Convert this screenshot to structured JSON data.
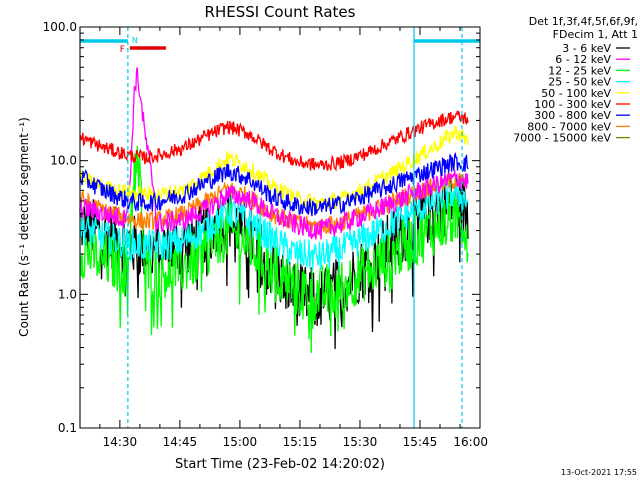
{
  "chart_data": {
    "type": "line",
    "title": "RHESSI Count Rates",
    "xlabel": "Start Time (23-Feb-02 14:20:02)",
    "ylabel": "Count Rate (s⁻¹ detector segment⁻¹)",
    "yscale": "log",
    "ylim": [
      0.1,
      100.0
    ],
    "xlim": [
      "14:20:02",
      "16:00:00"
    ],
    "x_tick_labels": [
      "14:30",
      "14:45",
      "15:00",
      "15:15",
      "15:30",
      "15:45",
      "16:00"
    ],
    "x_ticks_minutes": [
      870,
      885,
      900,
      915,
      930,
      945,
      960
    ],
    "y_tick_labels": [
      "0.1",
      "1.0",
      "10.0",
      "100.0"
    ],
    "y_ticks": [
      0.1,
      1.0,
      10.0,
      100.0
    ],
    "legend_header": [
      "Det 1f,3f,4f,5f,6f,9f,",
      "FDecim 1, Att 1"
    ],
    "legend_placement": "right",
    "timestamp": "13-Oct-2021 17:55",
    "x_minutes": [
      860,
      866,
      872,
      876,
      880,
      886,
      892,
      897,
      902,
      908,
      914,
      920,
      926,
      932,
      938,
      944,
      950,
      954,
      957
    ],
    "series": [
      {
        "name": "3 - 6 keV",
        "color": "#000000",
        "values": [
          3.4,
          2.8,
          2.4,
          2.2,
          2.2,
          2.3,
          3.0,
          3.8,
          2.8,
          1.6,
          1.0,
          0.9,
          1.2,
          1.7,
          2.5,
          3.5,
          4.6,
          5.2,
          4.0
        ]
      },
      {
        "name": "6 - 12 keV",
        "color": "#ff00ff",
        "values": [
          4.5,
          4.0,
          3.6,
          3.4,
          3.4,
          3.6,
          4.4,
          5.6,
          5.2,
          4.0,
          3.3,
          3.0,
          3.4,
          4.0,
          4.8,
          5.8,
          6.8,
          7.4,
          7.0
        ]
      },
      {
        "name": "12 - 25 keV",
        "color": "#00ff00",
        "values": [
          2.2,
          1.8,
          1.6,
          1.5,
          1.5,
          1.6,
          2.2,
          3.0,
          2.4,
          1.6,
          1.1,
          1.0,
          1.2,
          1.5,
          2.0,
          2.6,
          3.4,
          3.8,
          3.2
        ]
      },
      {
        "name": "25 - 50 keV",
        "color": "#00ffff",
        "values": [
          3.2,
          2.7,
          2.4,
          2.3,
          2.3,
          2.5,
          3.2,
          4.2,
          3.6,
          2.6,
          2.0,
          1.9,
          2.2,
          2.7,
          3.4,
          4.3,
          5.2,
          5.8,
          5.0
        ]
      },
      {
        "name": "50 - 100 keV",
        "color": "#ffff00",
        "values": [
          7.5,
          6.3,
          5.8,
          5.6,
          5.6,
          6.0,
          8.0,
          10.5,
          9.0,
          6.5,
          5.2,
          4.8,
          5.2,
          6.4,
          8.0,
          10.5,
          13.5,
          16.5,
          14.0
        ]
      },
      {
        "name": "100 - 300 keV",
        "color": "#ff0000",
        "values": [
          15.0,
          12.5,
          11.0,
          10.5,
          11.0,
          12.5,
          15.5,
          18.0,
          16.0,
          12.0,
          9.8,
          9.2,
          9.8,
          11.5,
          14.0,
          17.0,
          20.0,
          21.5,
          20.5
        ]
      },
      {
        "name": "300 - 800 keV",
        "color": "#0000ff",
        "values": [
          7.6,
          6.0,
          5.0,
          4.8,
          5.0,
          5.6,
          7.0,
          8.4,
          7.4,
          5.4,
          4.6,
          4.4,
          4.8,
          5.6,
          6.6,
          7.8,
          9.0,
          9.8,
          9.4
        ]
      },
      {
        "name": "800 - 7000 keV",
        "color": "#ff8000",
        "values": [
          5.2,
          4.2,
          3.7,
          3.5,
          3.6,
          4.0,
          5.0,
          6.2,
          5.4,
          4.0,
          3.4,
          3.2,
          3.5,
          4.1,
          4.9,
          5.8,
          6.6,
          7.2,
          6.8
        ]
      },
      {
        "name": "7000 - 15000 keV",
        "color": "#808000",
        "values": []
      }
    ],
    "flare_series_6_12_keV": {
      "x_minutes": [
        871,
        872.5,
        873.5,
        874.2,
        875,
        876,
        877.5,
        879
      ],
      "values": [
        3.6,
        6.0,
        30.0,
        45.0,
        33.0,
        18.0,
        9.0,
        5.0
      ]
    },
    "flare_series_12_25_keV": {
      "x_minutes": [
        872,
        873.5,
        874.5,
        876
      ],
      "values": [
        1.6,
        8.0,
        12.0,
        2.5
      ]
    },
    "attenuator_state_bar": {
      "color": "#00c8e8",
      "intervals": [
        [
          "14:20:02",
          "14:32:00"
        ],
        [
          "15:43:30",
          "16:00:00"
        ]
      ]
    },
    "vertical_markers": {
      "solid": [
        "14:20:02",
        "15:43:30"
      ],
      "dashed": [
        "14:32:00",
        "15:55:30"
      ],
      "color": "#00c8e8"
    },
    "flare_flag": {
      "label": "F",
      "color": "#e00000",
      "interval": [
        "14:32:00",
        "14:41:30"
      ]
    },
    "night_flag": {
      "label": "N",
      "color": "#00c8e8",
      "at": "14:32:00"
    }
  }
}
